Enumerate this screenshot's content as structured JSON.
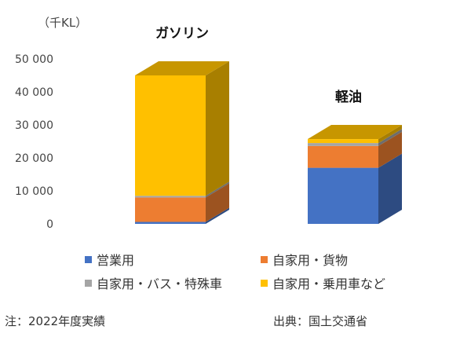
{
  "chart_data": {
    "type": "bar",
    "stacked": true,
    "style": "3d",
    "unit_label": "（千KL）",
    "categories": [
      "ガソリン",
      "軽油"
    ],
    "series": [
      {
        "name": "営業用",
        "color": "#4472C4",
        "values": [
          600,
          17000
        ]
      },
      {
        "name": "自家用・貨物",
        "color": "#ED7D31",
        "values": [
          7400,
          6600
        ]
      },
      {
        "name": "自家用・バス・特殊車",
        "color": "#A5A5A5",
        "values": [
          500,
          900
        ]
      },
      {
        "name": "自家用・乗用車など",
        "color": "#FFC000",
        "values": [
          36500,
          1200
        ]
      }
    ],
    "y_ticks": [
      "0",
      "10 000",
      "20 000",
      "30 000",
      "40 000",
      "50 000"
    ],
    "y_tick_values": [
      0,
      10000,
      20000,
      30000,
      40000,
      50000
    ],
    "ylim": [
      0,
      50000
    ],
    "grid": false,
    "legend_position": "bottom"
  },
  "footer": {
    "note": "注：2022年度実績",
    "source": "出典：国土交通省"
  }
}
